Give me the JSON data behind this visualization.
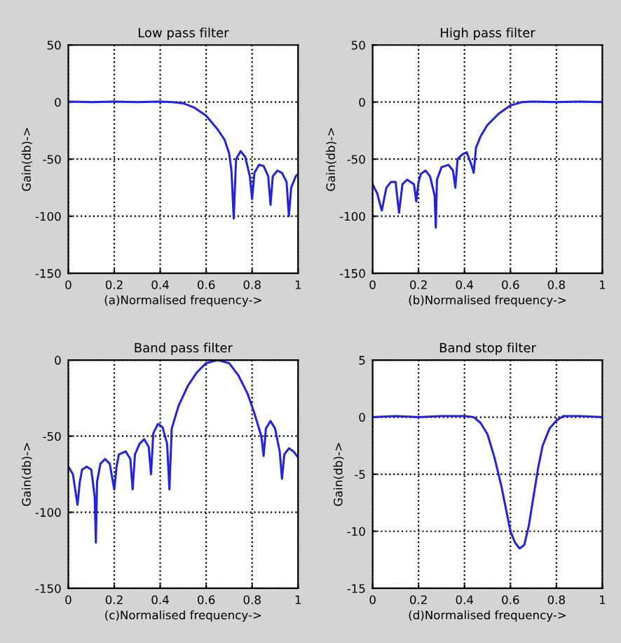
{
  "chart_data": [
    {
      "type": "line",
      "title": "Low pass filter",
      "xlabel": "(a)Normalised frequency->",
      "ylabel": "Gain(db)->",
      "xlim": [
        0,
        1
      ],
      "xticks": [
        0,
        0.2,
        0.4,
        0.6,
        0.8,
        1
      ],
      "ylim": [
        -150,
        50
      ],
      "yticks": [
        -150,
        -100,
        -50,
        0,
        50
      ],
      "grid": true,
      "marker": "none",
      "line_style": "solid",
      "series": [
        {
          "color": "#2424d8",
          "x": [
            0,
            0.1,
            0.2,
            0.3,
            0.4,
            0.45,
            0.5,
            0.55,
            0.6,
            0.65,
            0.68,
            0.7,
            0.71,
            0.72,
            0.73,
            0.75,
            0.77,
            0.79,
            0.8,
            0.81,
            0.83,
            0.85,
            0.87,
            0.88,
            0.89,
            0.91,
            0.93,
            0.95,
            0.96,
            0.97,
            0.99,
            1.0
          ],
          "values": [
            0.5,
            0,
            0.5,
            0,
            0.5,
            0,
            -1,
            -5,
            -12,
            -24,
            -33,
            -45,
            -60,
            -102,
            -50,
            -43,
            -48,
            -65,
            -85,
            -62,
            -55,
            -56,
            -65,
            -90,
            -65,
            -60,
            -62,
            -70,
            -100,
            -75,
            -65,
            -63
          ]
        }
      ]
    },
    {
      "type": "line",
      "title": "High pass filter",
      "xlabel": "(b)Normalised frequency->",
      "ylabel": "Gain(db)->",
      "xlim": [
        0,
        1
      ],
      "xticks": [
        0,
        0.2,
        0.4,
        0.6,
        0.8,
        1
      ],
      "ylim": [
        -150,
        50
      ],
      "yticks": [
        -150,
        -100,
        -50,
        0,
        50
      ],
      "grid": true,
      "marker": "none",
      "line_style": "solid",
      "series": [
        {
          "color": "#2424d8",
          "x": [
            0,
            0.02,
            0.04,
            0.05,
            0.06,
            0.08,
            0.1,
            0.115,
            0.13,
            0.15,
            0.18,
            0.19,
            0.2,
            0.21,
            0.23,
            0.25,
            0.27,
            0.275,
            0.28,
            0.3,
            0.33,
            0.35,
            0.36,
            0.37,
            0.39,
            0.41,
            0.43,
            0.44,
            0.45,
            0.47,
            0.5,
            0.55,
            0.6,
            0.65,
            0.7,
            0.8,
            0.9,
            1.0
          ],
          "values": [
            -72,
            -80,
            -95,
            -85,
            -75,
            -70,
            -70,
            -97,
            -72,
            -68,
            -72,
            -87,
            -70,
            -63,
            -60,
            -65,
            -82,
            -110,
            -68,
            -57,
            -55,
            -60,
            -75,
            -50,
            -46,
            -44,
            -55,
            -62,
            -40,
            -30,
            -20,
            -10,
            -3,
            0,
            0.5,
            0,
            0.5,
            0
          ]
        }
      ]
    },
    {
      "type": "line",
      "title": "Band pass filter",
      "xlabel": "(c)Normalised frequency->",
      "ylabel": "Gain(db)->",
      "xlim": [
        0,
        1
      ],
      "xticks": [
        0,
        0.2,
        0.4,
        0.6,
        0.8,
        1
      ],
      "ylim": [
        -150,
        0
      ],
      "yticks": [
        -150,
        -100,
        -50,
        0
      ],
      "grid": true,
      "marker": "none",
      "line_style": "solid",
      "series": [
        {
          "color": "#2424d8",
          "x": [
            0,
            0.02,
            0.04,
            0.05,
            0.06,
            0.08,
            0.1,
            0.115,
            0.12,
            0.125,
            0.14,
            0.16,
            0.18,
            0.2,
            0.21,
            0.22,
            0.25,
            0.27,
            0.28,
            0.29,
            0.31,
            0.33,
            0.35,
            0.36,
            0.37,
            0.39,
            0.41,
            0.43,
            0.44,
            0.45,
            0.48,
            0.52,
            0.56,
            0.6,
            0.65,
            0.7,
            0.74,
            0.78,
            0.81,
            0.84,
            0.85,
            0.86,
            0.88,
            0.9,
            0.92,
            0.93,
            0.94,
            0.96,
            0.98,
            1.0
          ],
          "values": [
            -70,
            -75,
            -95,
            -80,
            -72,
            -70,
            -72,
            -90,
            -120,
            -80,
            -68,
            -65,
            -68,
            -85,
            -70,
            -62,
            -60,
            -65,
            -85,
            -62,
            -55,
            -52,
            -57,
            -75,
            -48,
            -42,
            -44,
            -55,
            -85,
            -45,
            -30,
            -17,
            -8,
            -2,
            0,
            -2,
            -10,
            -22,
            -35,
            -50,
            -63,
            -45,
            -40,
            -45,
            -60,
            -78,
            -62,
            -58,
            -60,
            -64
          ]
        }
      ]
    },
    {
      "type": "line",
      "title": "Band stop filter",
      "xlabel": "(d)Normalised frequency->",
      "ylabel": "Gain(db)->",
      "xlim": [
        0,
        1
      ],
      "xticks": [
        0,
        0.2,
        0.4,
        0.6,
        0.8,
        1
      ],
      "ylim": [
        -15,
        5
      ],
      "yticks": [
        -15,
        -10,
        -5,
        0,
        5
      ],
      "grid": true,
      "marker": "none",
      "line_style": "solid",
      "series": [
        {
          "color": "#2424d8",
          "x": [
            0,
            0.1,
            0.2,
            0.3,
            0.4,
            0.44,
            0.47,
            0.5,
            0.53,
            0.56,
            0.58,
            0.6,
            0.62,
            0.64,
            0.66,
            0.68,
            0.7,
            0.72,
            0.74,
            0.77,
            0.8,
            0.83,
            0.9,
            1.0
          ],
          "values": [
            0,
            0.1,
            0,
            0.1,
            0.1,
            0,
            -0.5,
            -1.5,
            -3.5,
            -6,
            -8,
            -10,
            -11,
            -11.5,
            -11.2,
            -9.5,
            -7,
            -4.5,
            -2.5,
            -1,
            -0.3,
            0.1,
            0.1,
            0
          ]
        }
      ]
    }
  ]
}
